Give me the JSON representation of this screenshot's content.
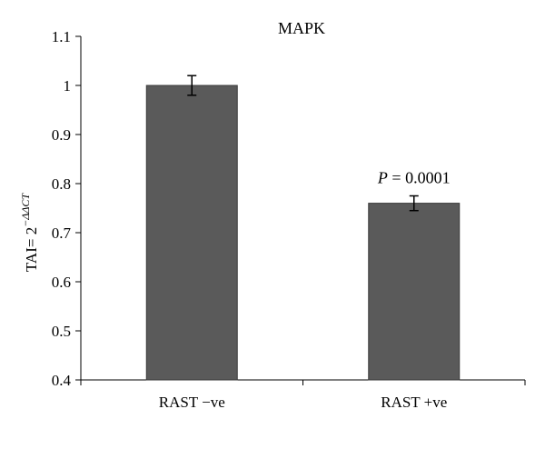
{
  "chart_data": {
    "type": "bar",
    "title": "MAPK",
    "xlabel": "",
    "ylabel": {
      "prefix": "TAI= 2",
      "superscript": "−ΔΔCT"
    },
    "categories": [
      "RAST −ve",
      "RAST +ve"
    ],
    "values": [
      1.0,
      0.76
    ],
    "error": [
      0.02,
      0.015
    ],
    "ylim": [
      0.4,
      1.1
    ],
    "yticks": [
      0.4,
      0.5,
      0.6,
      0.7,
      0.8,
      0.9,
      1,
      1.1
    ],
    "ytick_labels": [
      "0.4",
      "0.5",
      "0.6",
      "0.7",
      "0.8",
      "0.9",
      "1",
      "1.1"
    ],
    "annotations": [
      {
        "category": "RAST +ve",
        "italic": "P",
        "text": " = 0.0001"
      }
    ],
    "grid": false,
    "legend": "none",
    "bar_color": "#5a5a5a",
    "bar_edge_color": "#3a3a3a",
    "axis_color": "#000000"
  }
}
